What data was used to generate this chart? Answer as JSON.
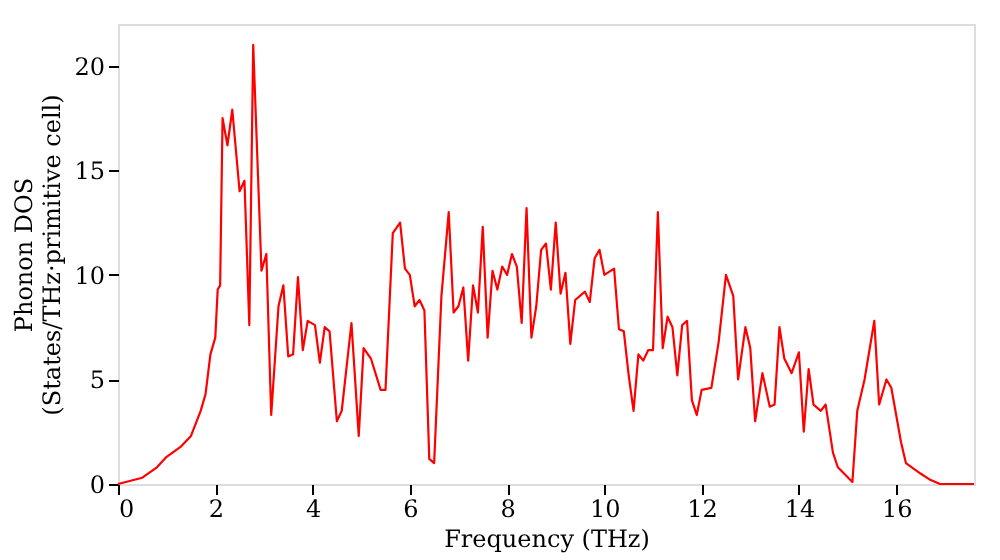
{
  "chart_data": {
    "type": "line",
    "xlabel": "Frequency (THz)",
    "ylabel": "Phonon DOS\n(States/THz·primitive cell)",
    "xlim": [
      0,
      17.6
    ],
    "ylim": [
      0,
      22
    ],
    "xticks": [
      0,
      2,
      4,
      6,
      8,
      10,
      12,
      14,
      16
    ],
    "yticks": [
      0,
      5,
      10,
      15,
      20
    ],
    "grid": false,
    "line_style": "solid",
    "series": [
      {
        "color": "#ff0000",
        "x": [
          0,
          0.5,
          0.8,
          1.0,
          1.3,
          1.5,
          1.7,
          1.8,
          1.9,
          2.0,
          2.05,
          2.1,
          2.15,
          2.25,
          2.35,
          2.5,
          2.6,
          2.7,
          2.78,
          2.95,
          3.05,
          3.15,
          3.3,
          3.4,
          3.5,
          3.6,
          3.7,
          3.8,
          3.9,
          4.05,
          4.15,
          4.25,
          4.35,
          4.5,
          4.6,
          4.8,
          4.95,
          5.05,
          5.2,
          5.4,
          5.5,
          5.65,
          5.8,
          5.9,
          6.0,
          6.1,
          6.2,
          6.3,
          6.4,
          6.5,
          6.65,
          6.8,
          6.9,
          7.0,
          7.1,
          7.2,
          7.3,
          7.4,
          7.5,
          7.6,
          7.7,
          7.8,
          7.9,
          8.0,
          8.1,
          8.2,
          8.3,
          8.4,
          8.5,
          8.6,
          8.7,
          8.8,
          8.9,
          9.0,
          9.1,
          9.2,
          9.3,
          9.4,
          9.6,
          9.7,
          9.8,
          9.9,
          10.0,
          10.2,
          10.3,
          10.4,
          10.5,
          10.6,
          10.7,
          10.8,
          10.9,
          11.0,
          11.1,
          11.2,
          11.3,
          11.4,
          11.5,
          11.6,
          11.7,
          11.8,
          11.9,
          12.0,
          12.2,
          12.35,
          12.5,
          12.65,
          12.75,
          12.9,
          13.0,
          13.1,
          13.25,
          13.4,
          13.5,
          13.6,
          13.7,
          13.85,
          14.0,
          14.1,
          14.2,
          14.3,
          14.45,
          14.55,
          14.7,
          14.8,
          15.1,
          15.2,
          15.35,
          15.55,
          15.65,
          15.8,
          15.9,
          16.1,
          16.2,
          16.5,
          16.7,
          16.9,
          17.6
        ],
        "values": [
          0,
          0.3,
          0.8,
          1.3,
          1.8,
          2.3,
          3.5,
          4.3,
          6.2,
          7,
          9.3,
          9.5,
          17.5,
          16.2,
          17.9,
          14,
          14.5,
          7.6,
          21,
          10.2,
          11,
          3.3,
          8.5,
          9.5,
          6.1,
          6.2,
          9.9,
          6.4,
          7.8,
          7.6,
          5.8,
          7.5,
          7.3,
          3,
          3.5,
          7.7,
          2.3,
          6.5,
          6,
          4.5,
          4.5,
          12,
          12.5,
          10.3,
          10,
          8.5,
          8.8,
          8.3,
          1.2,
          1,
          9,
          13,
          8.2,
          8.5,
          9.4,
          5.9,
          9.5,
          8.2,
          12.3,
          7,
          10.2,
          9.3,
          10.4,
          10,
          11,
          10.4,
          7.7,
          13.2,
          7,
          8.5,
          11.2,
          11.5,
          9.3,
          12.5,
          9.1,
          10.1,
          6.7,
          8.8,
          9.2,
          8.7,
          10.8,
          11.2,
          10,
          10.3,
          7.4,
          7.3,
          5.2,
          3.5,
          6.2,
          5.9,
          6.4,
          6.4,
          13,
          6.5,
          8,
          7.5,
          5.2,
          7.6,
          7.8,
          4,
          3.3,
          4.5,
          4.6,
          6.8,
          10,
          9,
          5,
          7.5,
          6.5,
          3,
          5.3,
          3.7,
          3.8,
          7.5,
          6,
          5.3,
          6.3,
          2.5,
          5.5,
          3.8,
          3.5,
          3.8,
          1.5,
          0.8,
          0.1,
          3.5,
          5,
          7.8,
          3.8,
          5,
          4.6,
          2,
          1,
          0.5,
          0.2,
          0,
          0
        ]
      }
    ]
  }
}
